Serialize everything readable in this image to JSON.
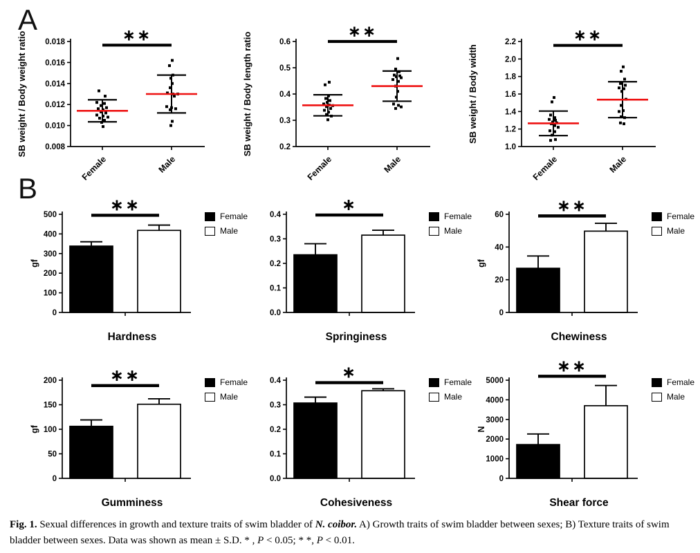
{
  "panels": {
    "a_label": "A",
    "b_label": "B"
  },
  "colors": {
    "mean_line": "#ee1111",
    "bar_female": "#000000",
    "bar_male": "#ffffff",
    "axis": "#000000"
  },
  "legend": {
    "items": [
      {
        "label": "Female",
        "fill": "#000000"
      },
      {
        "label": "Male",
        "fill": "#ffffff"
      }
    ]
  },
  "chart_data": {
    "scatter_charts": [
      {
        "type": "scatter",
        "ylabel": "SB weight / Body weight ratio",
        "ylim": [
          0.008,
          0.018
        ],
        "yticks": [
          0.008,
          0.01,
          0.012,
          0.014,
          0.016,
          0.018
        ],
        "ytick_labels": [
          "0.008",
          "0.010",
          "0.012",
          "0.014",
          "0.016",
          "0.018"
        ],
        "categories": [
          "Female",
          "Male"
        ],
        "sig": {
          "label": "∗∗",
          "y": 0.01765
        },
        "groups": [
          {
            "label": "Female",
            "mean": 0.0114,
            "sd": 0.00105,
            "points": [
              [
                0.0133,
                -5
              ],
              [
                0.0128,
                4
              ],
              [
                0.0122,
                -8
              ],
              [
                0.0121,
                3
              ],
              [
                0.0119,
                -2
              ],
              [
                0.0117,
                6
              ],
              [
                0.0116,
                -6
              ],
              [
                0.0115,
                1
              ],
              [
                0.0113,
                -2
              ],
              [
                0.0112,
                5
              ],
              [
                0.011,
                -8
              ],
              [
                0.0109,
                1
              ],
              [
                0.0108,
                8
              ],
              [
                0.0107,
                -4
              ],
              [
                0.0105,
                3
              ],
              [
                0.0103,
                -1
              ],
              [
                0.0099,
                1
              ]
            ]
          },
          {
            "label": "Male",
            "mean": 0.013,
            "sd": 0.0018,
            "points": [
              [
                0.0162,
                1
              ],
              [
                0.0157,
                -3
              ],
              [
                0.0148,
                2
              ],
              [
                0.0145,
                -1
              ],
              [
                0.014,
                1
              ],
              [
                0.0136,
                -2
              ],
              [
                0.0131,
                -6
              ],
              [
                0.013,
                2
              ],
              [
                0.013,
                9
              ],
              [
                0.0128,
                4
              ],
              [
                0.0118,
                -7
              ],
              [
                0.0117,
                0
              ],
              [
                0.0116,
                6
              ],
              [
                0.0115,
                -2
              ],
              [
                0.0104,
                1
              ],
              [
                0.01,
                -1
              ]
            ]
          }
        ]
      },
      {
        "type": "scatter",
        "ylabel": "SB weight / Body length ratio",
        "ylim": [
          0.2,
          0.6
        ],
        "yticks": [
          0.2,
          0.3,
          0.4,
          0.5,
          0.6
        ],
        "ytick_labels": [
          "0.2",
          "0.3",
          "0.4",
          "0.5",
          "0.6"
        ],
        "categories": [
          "Female",
          "Male"
        ],
        "sig": {
          "label": "∗∗",
          "y": 0.6
        },
        "groups": [
          {
            "label": "Female",
            "mean": 0.357,
            "sd": 0.04,
            "points": [
              [
                0.445,
                2
              ],
              [
                0.435,
                -4
              ],
              [
                0.393,
                1
              ],
              [
                0.383,
                -3
              ],
              [
                0.375,
                3
              ],
              [
                0.368,
                -1
              ],
              [
                0.362,
                -6
              ],
              [
                0.358,
                2
              ],
              [
                0.356,
                7
              ],
              [
                0.352,
                -2
              ],
              [
                0.345,
                4
              ],
              [
                0.338,
                -5
              ],
              [
                0.331,
                1
              ],
              [
                0.322,
                -2
              ],
              [
                0.316,
                5
              ],
              [
                0.302,
                0
              ]
            ]
          },
          {
            "label": "Male",
            "mean": 0.43,
            "sd": 0.0575,
            "points": [
              [
                0.535,
                1
              ],
              [
                0.495,
                -2
              ],
              [
                0.485,
                3
              ],
              [
                0.472,
                -4
              ],
              [
                0.469,
                4
              ],
              [
                0.466,
                -1
              ],
              [
                0.462,
                6
              ],
              [
                0.455,
                -6
              ],
              [
                0.448,
                2
              ],
              [
                0.43,
                -2
              ],
              [
                0.41,
                1
              ],
              [
                0.388,
                -1
              ],
              [
                0.362,
                -5
              ],
              [
                0.357,
                2
              ],
              [
                0.351,
                6
              ],
              [
                0.345,
                -2
              ]
            ]
          }
        ]
      },
      {
        "type": "scatter",
        "ylabel": "SB weight / Body width",
        "ylim": [
          1.0,
          2.2
        ],
        "yticks": [
          1.0,
          1.2,
          1.4,
          1.6,
          1.8,
          2.0,
          2.2
        ],
        "ytick_labels": [
          "1.0",
          "1.2",
          "1.4",
          "1.6",
          "1.8",
          "2.0",
          "2.2"
        ],
        "categories": [
          "Female",
          "Male"
        ],
        "sig": {
          "label": "∗∗",
          "y": 2.155
        },
        "groups": [
          {
            "label": "Female",
            "mean": 1.265,
            "sd": 0.14,
            "points": [
              [
                1.56,
                1
              ],
              [
                1.51,
                -2
              ],
              [
                1.36,
                -4
              ],
              [
                1.33,
                2
              ],
              [
                1.31,
                -6
              ],
              [
                1.3,
                3
              ],
              [
                1.28,
                -1
              ],
              [
                1.27,
                5
              ],
              [
                1.26,
                -3
              ],
              [
                1.24,
                2
              ],
              [
                1.22,
                7
              ],
              [
                1.18,
                -5
              ],
              [
                1.17,
                2
              ],
              [
                1.13,
                -2
              ],
              [
                1.08,
                3
              ],
              [
                1.07,
                -4
              ]
            ]
          },
          {
            "label": "Male",
            "mean": 1.535,
            "sd": 0.205,
            "points": [
              [
                1.91,
                1
              ],
              [
                1.86,
                -2
              ],
              [
                1.77,
                3
              ],
              [
                1.72,
                -3
              ],
              [
                1.7,
                4
              ],
              [
                1.67,
                -5
              ],
              [
                1.66,
                2
              ],
              [
                1.63,
                -1
              ],
              [
                1.54,
                5
              ],
              [
                1.47,
                -2
              ],
              [
                1.41,
                1
              ],
              [
                1.4,
                -5
              ],
              [
                1.34,
                -2
              ],
              [
                1.33,
                3
              ],
              [
                1.27,
                -3
              ],
              [
                1.26,
                2
              ]
            ]
          }
        ]
      }
    ],
    "bar_charts": [
      {
        "type": "bar",
        "title": "Hardness",
        "ylabel": "gf",
        "ylim": [
          0,
          500
        ],
        "yticks": [
          0,
          100,
          200,
          300,
          400,
          500
        ],
        "ytick_labels": [
          "0",
          "100",
          "200",
          "300",
          "400",
          "500"
        ],
        "sig": {
          "label": "∗∗",
          "y": 495
        },
        "series": [
          {
            "name": "Female",
            "value": 338,
            "sd": 22
          },
          {
            "name": "Male",
            "value": 418,
            "sd": 27
          }
        ]
      },
      {
        "type": "bar",
        "title": "Springiness",
        "ylabel": "",
        "ylim": [
          0,
          0.4
        ],
        "yticks": [
          0,
          0.1,
          0.2,
          0.3,
          0.4
        ],
        "ytick_labels": [
          "0.0",
          "0.1",
          "0.2",
          "0.3",
          "0.4"
        ],
        "sig": {
          "label": "∗",
          "y": 0.397
        },
        "series": [
          {
            "name": "Female",
            "value": 0.235,
            "sd": 0.045
          },
          {
            "name": "Male",
            "value": 0.315,
            "sd": 0.02
          }
        ]
      },
      {
        "type": "bar",
        "title": "Chewiness",
        "ylabel": "gf",
        "ylim": [
          0,
          60
        ],
        "yticks": [
          0,
          20,
          40,
          60
        ],
        "ytick_labels": [
          "0",
          "20",
          "40",
          "60"
        ],
        "sig": {
          "label": "∗∗",
          "y": 59
        },
        "series": [
          {
            "name": "Female",
            "value": 27,
            "sd": 7.5
          },
          {
            "name": "Male",
            "value": 49.7,
            "sd": 4.8
          }
        ]
      },
      {
        "type": "bar",
        "title": "Gumminess",
        "ylabel": "gf",
        "ylim": [
          0,
          200
        ],
        "yticks": [
          0,
          50,
          100,
          150,
          200
        ],
        "ytick_labels": [
          "0",
          "50",
          "100",
          "150",
          "200"
        ],
        "sig": {
          "label": "∗∗",
          "y": 189
        },
        "series": [
          {
            "name": "Female",
            "value": 106,
            "sd": 13
          },
          {
            "name": "Male",
            "value": 151,
            "sd": 11
          }
        ]
      },
      {
        "type": "bar",
        "title": "Cohesiveness",
        "ylabel": "",
        "ylim": [
          0,
          0.4
        ],
        "yticks": [
          0,
          0.1,
          0.2,
          0.3,
          0.4
        ],
        "ytick_labels": [
          "0.0",
          "0.1",
          "0.2",
          "0.3",
          "0.4"
        ],
        "sig": {
          "label": "∗",
          "y": 0.39
        },
        "series": [
          {
            "name": "Female",
            "value": 0.307,
            "sd": 0.024
          },
          {
            "name": "Male",
            "value": 0.357,
            "sd": 0.008
          }
        ]
      },
      {
        "type": "bar",
        "title": "Shear force",
        "ylabel": "N",
        "ylim": [
          0,
          5000
        ],
        "yticks": [
          0,
          1000,
          2000,
          3000,
          4000,
          5000
        ],
        "ytick_labels": [
          "0",
          "1000",
          "2000",
          "3000",
          "4000",
          "5000"
        ],
        "sig": {
          "label": "∗∗",
          "y": 5200
        },
        "series": [
          {
            "name": "Female",
            "value": 1720,
            "sd": 540
          },
          {
            "name": "Male",
            "value": 3700,
            "sd": 1030
          }
        ]
      }
    ]
  },
  "caption": {
    "segments": [
      {
        "text": "Fig. 1."
      },
      {
        "text": "  Sexual differences in growth and texture traits of swim bladder of "
      },
      {
        "text": "N. coibor."
      },
      {
        "text": " A) Growth traits of swim bladder between sexes; B) Texture traits of swim bladder between sexes. Data was shown as mean ± S.D. * , "
      },
      {
        "text": "P"
      },
      {
        "text": " < 0.05; * *, "
      },
      {
        "text": "P"
      },
      {
        "text": " < 0.01."
      }
    ]
  }
}
